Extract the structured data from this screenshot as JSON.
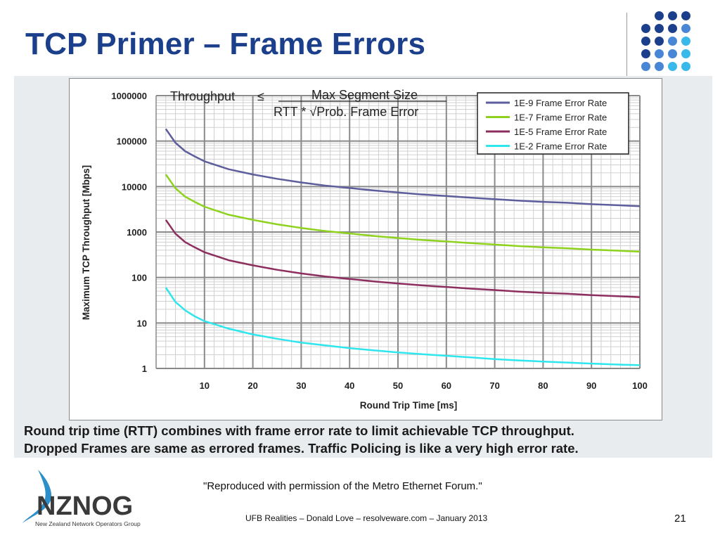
{
  "slide": {
    "title": "TCP Primer – Frame Errors",
    "caption_line1": "Round trip time (RTT) combines with frame error rate to limit achievable TCP throughput.",
    "caption_line2": "Dropped Frames are same as errored frames. Traffic Policing is like a very high error rate.",
    "permission": "\"Reproduced with permission of the Metro Ethernet Forum.\"",
    "footer": "UFB Realities – Donald Love – resolveware.com – January 2013",
    "page_number": "21",
    "logo_text": "NZNOG",
    "logo_subtext": "New Zealand Network Operators Group"
  },
  "colors": {
    "title": "#1c3f8c",
    "dot_dark": "#1c3f8c",
    "dot_mid": "#4a86d6",
    "dot_light": "#39b8ea"
  },
  "chart_data": {
    "type": "line",
    "xlabel": "Round Trip Time [ms]",
    "ylabel": "Maximum TCP Throughput [Mbps]",
    "xlim": [
      0,
      100
    ],
    "ylim": [
      1,
      1000000
    ],
    "yscale": "log",
    "x_ticks": [
      10,
      20,
      30,
      40,
      50,
      60,
      70,
      80,
      90,
      100
    ],
    "y_ticks": [
      1,
      10,
      100,
      1000,
      10000,
      100000,
      1000000
    ],
    "grid": true,
    "legend_position": "top-right",
    "formula": {
      "lhs": "Throughput",
      "op": "≤",
      "numerator": "Max Segment Size",
      "denominator": "RTT * √Prob. Frame Error"
    },
    "x": [
      2,
      4,
      6,
      8,
      10,
      15,
      20,
      25,
      30,
      35,
      40,
      45,
      50,
      55,
      60,
      65,
      70,
      75,
      80,
      85,
      90,
      95,
      100
    ],
    "series": [
      {
        "name": "1E-9 Frame Error Rate",
        "color": "#5e5e9c",
        "values": [
          185000,
          92000,
          60000,
          46000,
          36000,
          24000,
          18500,
          14800,
          12300,
          10500,
          9300,
          8200,
          7400,
          6700,
          6200,
          5700,
          5300,
          4900,
          4600,
          4400,
          4100,
          3900,
          3700
        ]
      },
      {
        "name": "1E-7 Frame Error Rate",
        "color": "#8ed21e",
        "values": [
          18500,
          9200,
          6000,
          4600,
          3600,
          2400,
          1850,
          1480,
          1230,
          1050,
          930,
          820,
          740,
          670,
          620,
          570,
          530,
          490,
          460,
          440,
          410,
          390,
          370
        ]
      },
      {
        "name": "1E-5 Frame Error Rate",
        "color": "#8c2e5e",
        "values": [
          1850,
          920,
          600,
          460,
          360,
          240,
          185,
          148,
          123,
          105,
          93,
          82,
          74,
          67,
          62,
          57,
          53,
          49,
          46,
          44,
          41,
          39,
          37
        ]
      },
      {
        "name": "1E-2 Frame Error Rate",
        "color": "#2ee6ee",
        "values": [
          60,
          29,
          19,
          14,
          11,
          7.5,
          5.6,
          4.5,
          3.7,
          3.2,
          2.8,
          2.5,
          2.25,
          2.05,
          1.9,
          1.75,
          1.6,
          1.5,
          1.42,
          1.35,
          1.28,
          1.22,
          1.18
        ]
      }
    ]
  }
}
